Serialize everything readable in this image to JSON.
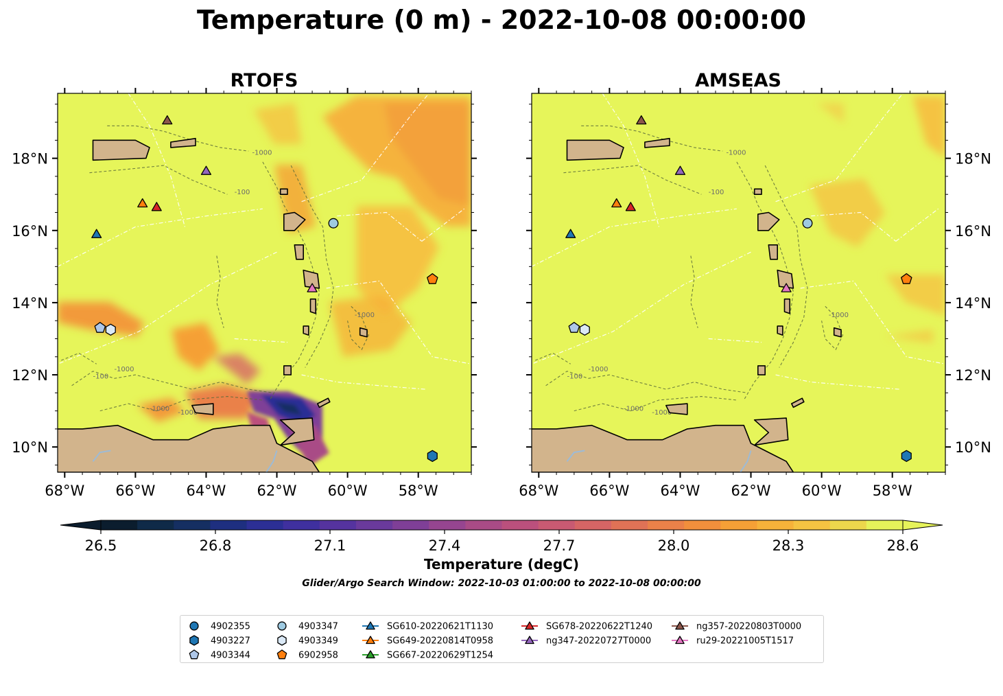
{
  "figure": {
    "title": "Temperature (0 m) - 2022-10-08 00:00:00"
  },
  "panels": [
    {
      "title": "RTOFS"
    },
    {
      "title": "AMSEAS"
    }
  ],
  "axes": {
    "lon_range": [
      -68.2,
      -56.5
    ],
    "lat_range": [
      9.3,
      19.8
    ],
    "lon_ticks": [
      "68°W",
      "66°W",
      "64°W",
      "62°W",
      "60°W",
      "58°W"
    ],
    "lon_tick_values": [
      -68,
      -66,
      -64,
      -62,
      -60,
      -58
    ],
    "lat_ticks": [
      "10°N",
      "12°N",
      "14°N",
      "16°N",
      "18°N"
    ],
    "lat_tick_values": [
      10,
      12,
      14,
      16,
      18
    ]
  },
  "colorbar": {
    "label": "Temperature (degC)",
    "ticks": [
      "26.5",
      "26.8",
      "27.1",
      "27.4",
      "27.7",
      "28.0",
      "28.3",
      "28.6"
    ],
    "range": [
      26.5,
      28.6
    ],
    "colors": [
      "#0b1d2e",
      "#0f2a48",
      "#152f62",
      "#1e2f80",
      "#2c2f95",
      "#3f309f",
      "#55339f",
      "#6a3a9c",
      "#7f3f97",
      "#964590",
      "#a94b86",
      "#bb507d",
      "#c95a72",
      "#d66565",
      "#e07256",
      "#ea8149",
      "#f18f3c",
      "#f5a036",
      "#f6b23a",
      "#f5c342",
      "#ecd74c",
      "#e6f35a"
    ]
  },
  "search_window": "Glider/Argo Search Window: 2022-10-03 01:00:00 to 2022-10-08 00:00:00",
  "contour_labels": [
    "-100",
    "-1000"
  ],
  "legend": [
    {
      "label": "4902355",
      "marker": "circle",
      "color": "#1f77b4"
    },
    {
      "label": "4903227",
      "marker": "hexagon",
      "color": "#1f77b4"
    },
    {
      "label": "4903344",
      "marker": "pentagon",
      "color": "#aec7e8"
    },
    {
      "label": "4903347",
      "marker": "circle",
      "color": "#9ecae1"
    },
    {
      "label": "4903349",
      "marker": "hexagon",
      "color": "#dbe9f6"
    },
    {
      "label": "6902958",
      "marker": "pentagon",
      "color": "#ff7f0e"
    },
    {
      "label": "SG610-20220621T1130",
      "marker": "triangle",
      "color": "#1f77b4"
    },
    {
      "label": "SG649-20220814T0958",
      "marker": "triangle",
      "color": "#ff7f0e"
    },
    {
      "label": "SG667-20220629T1254",
      "marker": "triangle",
      "color": "#2ca02c"
    },
    {
      "label": "SG678-20220622T1240",
      "marker": "triangle",
      "color": "#d62728"
    },
    {
      "label": "ng347-20220727T0000",
      "marker": "triangle",
      "color": "#9467bd"
    },
    {
      "label": "ng357-20220803T0000",
      "marker": "triangle",
      "color": "#8c564b"
    },
    {
      "label": "ru29-20221005T1517",
      "marker": "triangle",
      "color": "#e377c2"
    }
  ],
  "points": [
    {
      "id": "4903227",
      "lon": -57.6,
      "lat": 9.75
    },
    {
      "id": "4903344",
      "lon": -67.0,
      "lat": 13.3
    },
    {
      "id": "4903347",
      "lon": -60.4,
      "lat": 16.2
    },
    {
      "id": "4903349",
      "lon": -66.7,
      "lat": 13.25
    },
    {
      "id": "6902958",
      "lon": -57.6,
      "lat": 14.65
    },
    {
      "id": "SG610-20220621T1130",
      "lon": -67.1,
      "lat": 15.9
    },
    {
      "id": "SG649-20220814T0958",
      "lon": -65.8,
      "lat": 16.75
    },
    {
      "id": "SG678-20220622T1240",
      "lon": -65.4,
      "lat": 16.65
    },
    {
      "id": "ng347-20220727T0000",
      "lon": -64.0,
      "lat": 17.65
    },
    {
      "id": "ng357-20220803T0000",
      "lon": -65.1,
      "lat": 19.05
    },
    {
      "id": "ru29-20221005T1517",
      "lon": -61.0,
      "lat": 14.4
    }
  ],
  "colors": {
    "ocean_base": "#e6f55a",
    "warm": "#f5b33c",
    "land": "#d2b48c",
    "river": "#9dbbd6"
  }
}
